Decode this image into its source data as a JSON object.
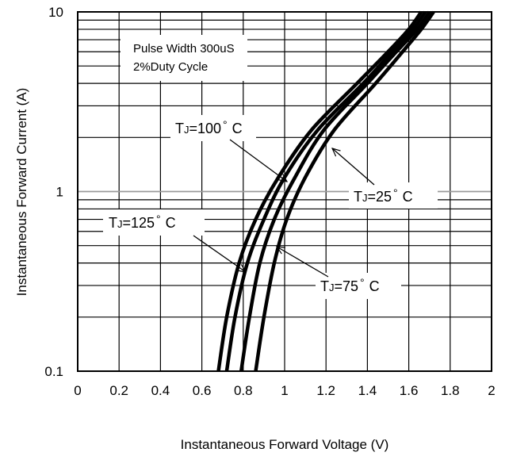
{
  "chart_data": {
    "type": "line",
    "xlabel": "Instantaneous Forward Voltage (V)",
    "ylabel": "Instantaneous Forward Current (A)",
    "xlim": [
      0,
      2
    ],
    "ylim": [
      0.1,
      10
    ],
    "y_scale": "log",
    "grid": true,
    "x_ticks": [
      "0",
      "0.2",
      "0.4",
      "0.6",
      "0.8",
      "1",
      "1.2",
      "1.4",
      "1.6",
      "1.8",
      "2"
    ],
    "y_ticks": [
      "0.1",
      "1",
      "10"
    ],
    "annotations": [
      "Pulse Width 300uS",
      "2%Duty Cycle"
    ],
    "series": [
      {
        "name": "TJ=125° C",
        "x": [
          0.68,
          0.72,
          0.78,
          0.86,
          0.97,
          1.13,
          1.35,
          1.5,
          1.6,
          1.66
        ],
        "values": [
          0.1,
          0.2,
          0.4,
          0.7,
          1.2,
          2.2,
          4.0,
          6.0,
          8.0,
          10.0
        ]
      },
      {
        "name": "TJ=100° C",
        "x": [
          0.72,
          0.76,
          0.82,
          0.9,
          1.0,
          1.16,
          1.38,
          1.52,
          1.62,
          1.68
        ],
        "values": [
          0.1,
          0.2,
          0.4,
          0.7,
          1.2,
          2.2,
          4.0,
          6.0,
          8.0,
          10.0
        ]
      },
      {
        "name": "TJ=75° C",
        "x": [
          0.79,
          0.83,
          0.88,
          0.95,
          1.05,
          1.19,
          1.4,
          1.54,
          1.64,
          1.7
        ],
        "values": [
          0.1,
          0.2,
          0.4,
          0.7,
          1.2,
          2.2,
          4.0,
          6.0,
          8.0,
          10.0
        ]
      },
      {
        "name": "TJ=25° C",
        "x": [
          0.86,
          0.9,
          0.95,
          1.01,
          1.1,
          1.24,
          1.44,
          1.57,
          1.66,
          1.72
        ],
        "values": [
          0.1,
          0.2,
          0.4,
          0.7,
          1.2,
          2.2,
          4.0,
          6.0,
          8.0,
          10.0
        ]
      }
    ]
  },
  "labels": {
    "t100": {
      "sub": "J",
      "text": "=100",
      "deg": "°",
      "unit": "C"
    },
    "t25": {
      "sub": "J",
      "text": "=25",
      "deg": "°",
      "unit": "C"
    },
    "t125": {
      "sub": "J",
      "text": "=125",
      "deg": "°",
      "unit": "C"
    },
    "t75": {
      "sub": "J",
      "text": "=75",
      "deg": "°",
      "unit": "C"
    },
    "t_letter": "T"
  }
}
